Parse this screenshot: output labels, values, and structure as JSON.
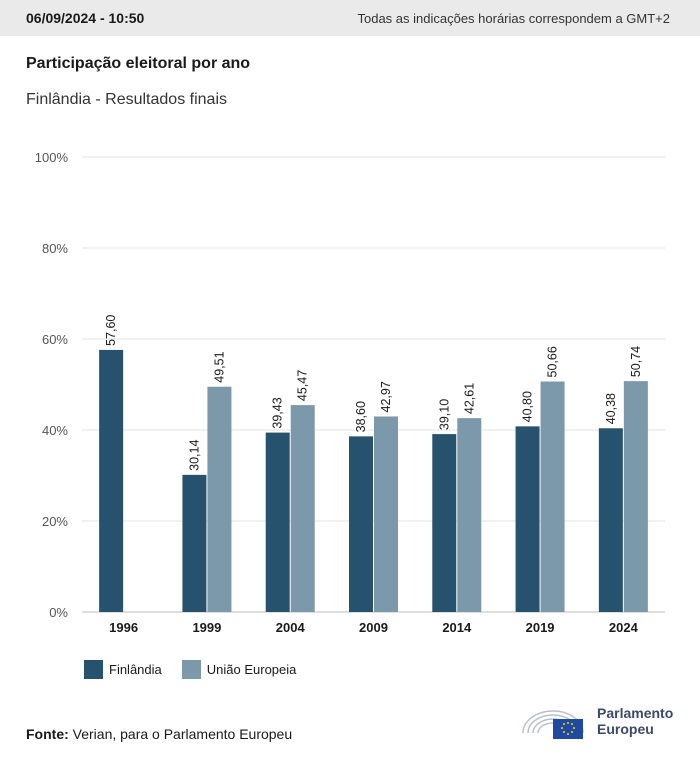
{
  "header": {
    "timestamp": "06/09/2024 - 10:50",
    "timezone_note": "Todas as indicações horárias correspondem a GMT+2"
  },
  "title": "Participação eleitoral por ano",
  "subtitle": "Finlândia - Resultados finais",
  "colors": {
    "finland": "#26526e",
    "eu": "#7c98ab",
    "grid": "#e3e3e3",
    "axis_text": "#555555"
  },
  "chart_data": {
    "type": "bar",
    "categories": [
      "1996",
      "1999",
      "2004",
      "2009",
      "2014",
      "2019",
      "2024"
    ],
    "series": [
      {
        "name": "Finlândia",
        "values": [
          57.6,
          30.14,
          39.43,
          38.6,
          39.1,
          40.8,
          40.38
        ],
        "labels": [
          "57,60",
          "30,14",
          "39,43",
          "38,60",
          "39,10",
          "40,80",
          "40,38"
        ]
      },
      {
        "name": "União Europeia",
        "values": [
          null,
          49.51,
          45.47,
          42.97,
          42.61,
          50.66,
          50.74
        ],
        "labels": [
          null,
          "49,51",
          "45,47",
          "42,97",
          "42,61",
          "50,66",
          "50,74"
        ]
      }
    ],
    "y_ticks": [
      "0%",
      "20%",
      "40%",
      "60%",
      "80%",
      "100%"
    ],
    "ylim": [
      0,
      100
    ],
    "grid": true,
    "legend_position": "bottom-left"
  },
  "legend": {
    "finland_label": "Finlândia",
    "eu_label": "União Europeia"
  },
  "source": {
    "label": "Fonte:",
    "text": "Verian, para o Parlamento Europeu"
  },
  "logo": {
    "line1": "Parlamento",
    "line2": "Europeu"
  }
}
